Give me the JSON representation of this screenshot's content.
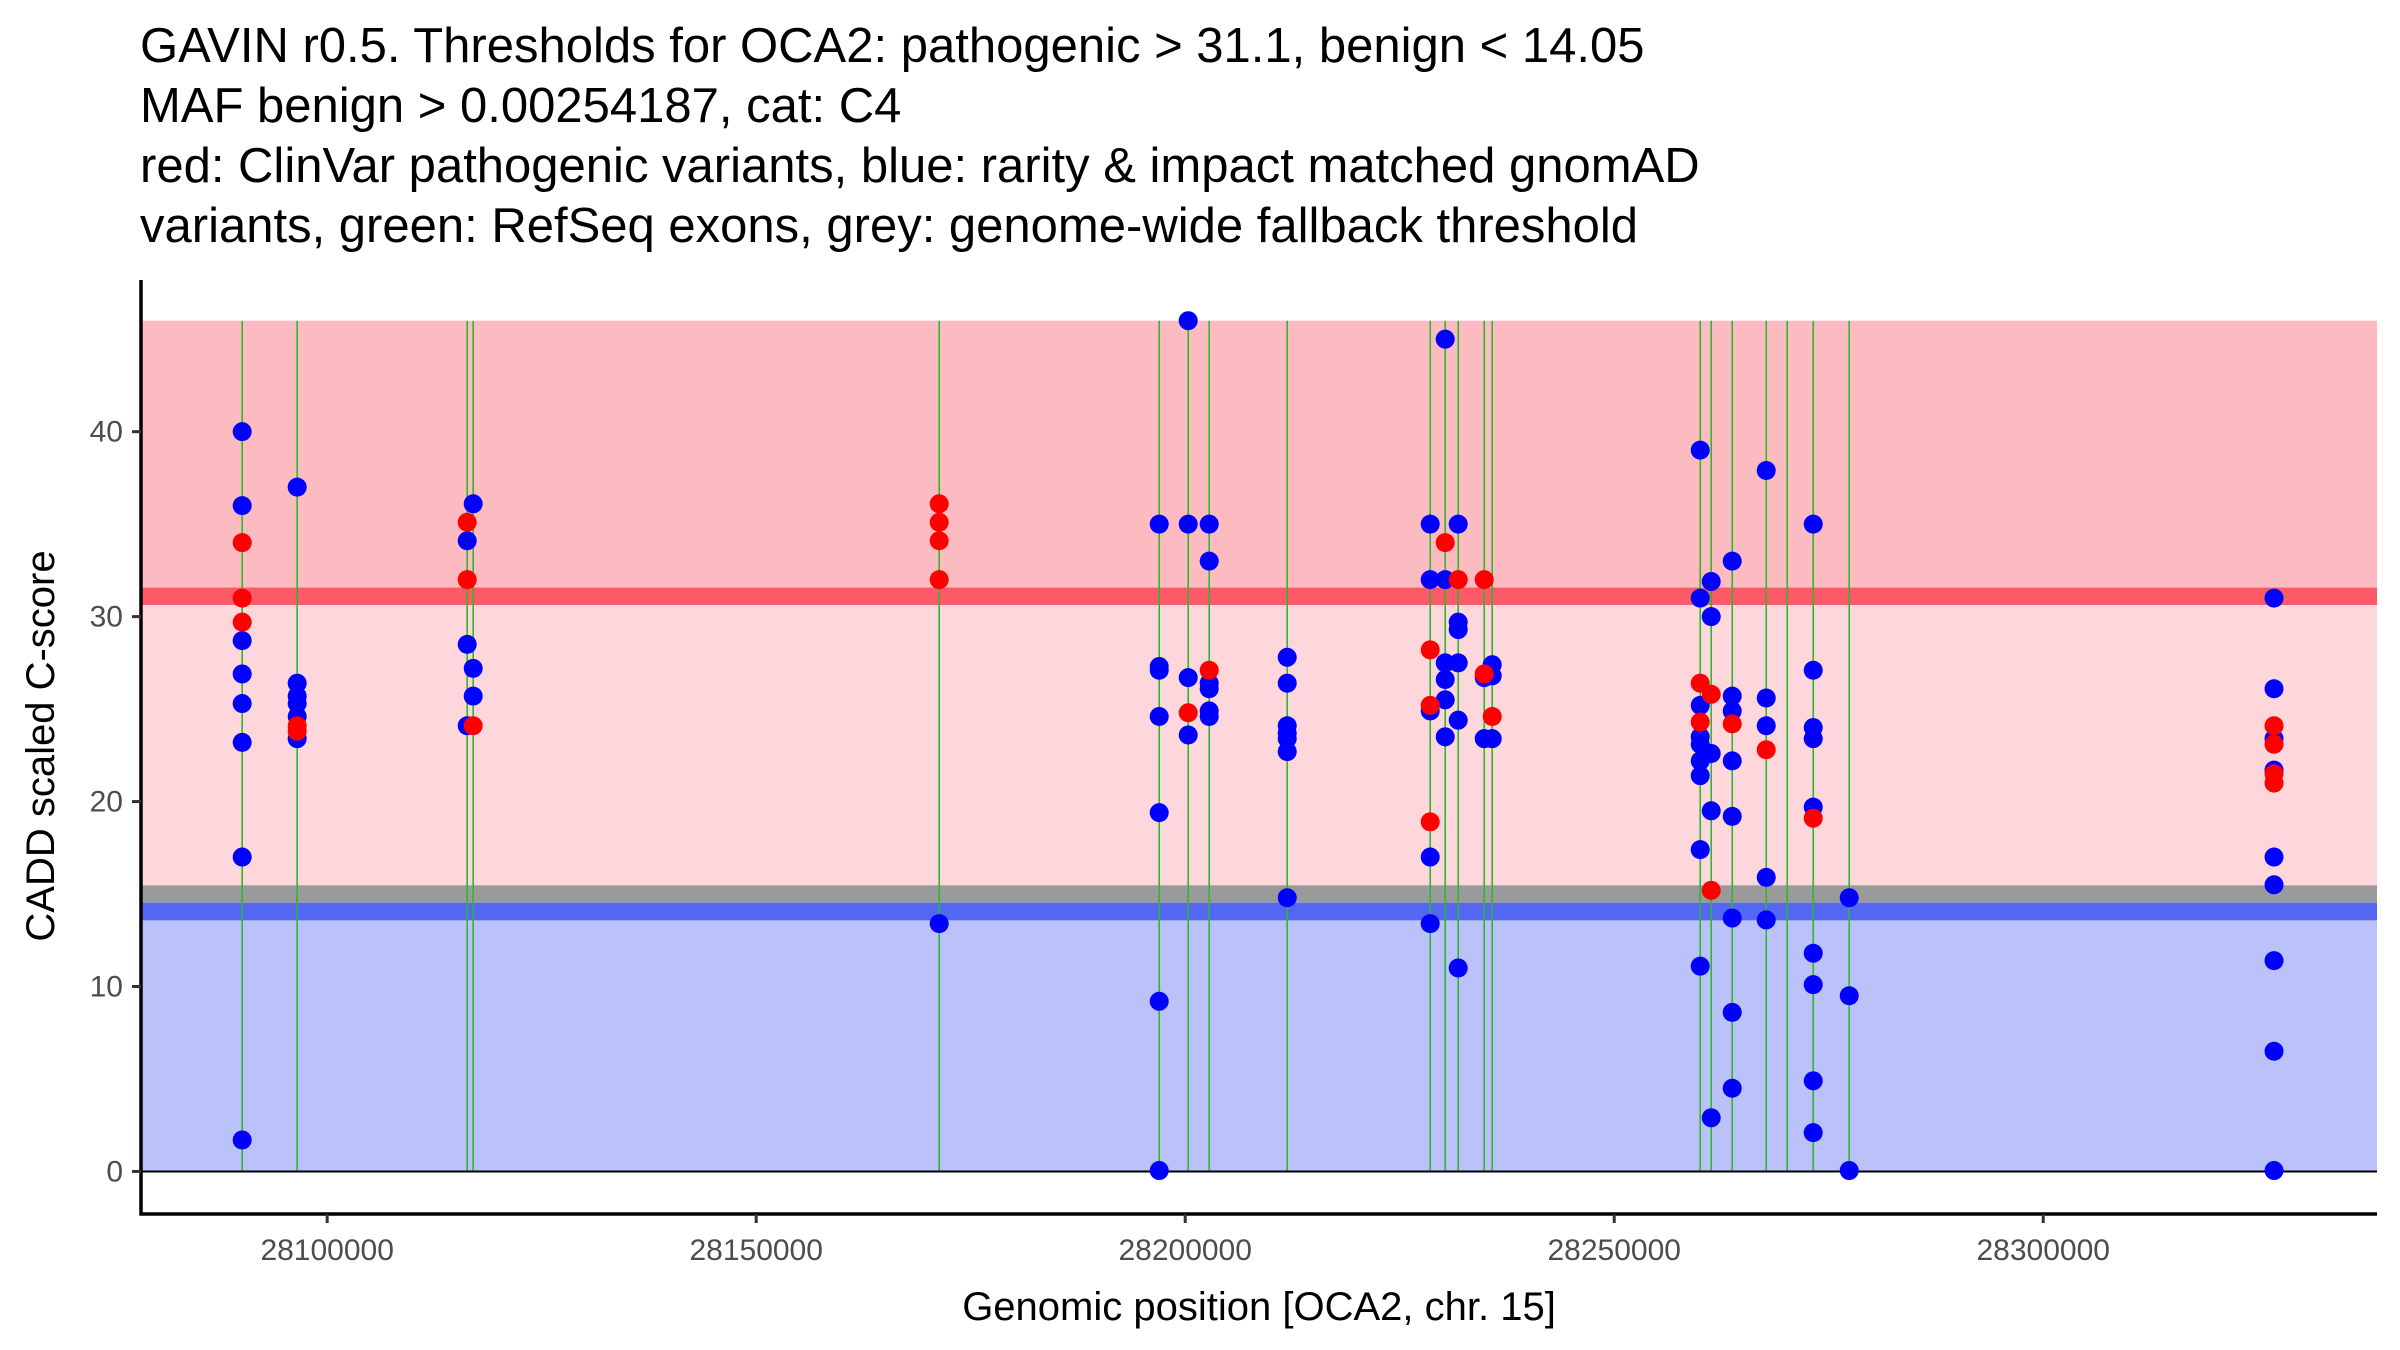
{
  "title_lines": [
    "GAVIN r0.5. Thresholds for OCA2: pathogenic > 31.1, benign < 14.05",
    "MAF benign > 0.00254187, cat: C4",
    "red: ClinVar pathogenic variants, blue: rarity & impact matched gnomAD",
    "variants, green: RefSeq exons, grey: genome-wide fallback threshold"
  ],
  "colors": {
    "pathogenic_region": "#FCBBC0",
    "vus_region": "#FDD7DB",
    "benign_region": "#BBC1F9",
    "pathogenic_threshold": "#FC5A67",
    "fallback_threshold": "#9A9A9A",
    "benign_threshold": "#5467F2",
    "exon": "#2DB82D",
    "clinvar": "#FF0000",
    "gnomad": "#0000FF"
  },
  "chart_data": {
    "type": "scatter",
    "title": "GAVIN r0.5. Thresholds for OCA2: pathogenic > 31.1, benign < 14.05",
    "xlabel": "Genomic position [OCA2, chr. 15]",
    "ylabel": "CADD scaled C-score",
    "xlim": [
      28078300,
      28338900
    ],
    "ylim": [
      -2.3,
      48.2
    ],
    "x_ticks": [
      28100000,
      28150000,
      28200000,
      28250000,
      28300000
    ],
    "x_tick_labels": [
      "28100000",
      "28150000",
      "28200000",
      "28250000",
      "28300000"
    ],
    "y_ticks": [
      0,
      10,
      20,
      30,
      40
    ],
    "y_tick_labels": [
      "0",
      "10",
      "20",
      "30",
      "40"
    ],
    "grid": false,
    "legend": "none (described in title)",
    "regions": {
      "top": 46.0,
      "pathogenic_threshold": 31.1,
      "fallback_threshold": 15.0,
      "benign_threshold": 14.05,
      "bottom": 0
    },
    "exons": [
      28090093,
      28096503,
      28116317,
      28117016,
      28171329,
      28196970,
      28200350,
      28202797,
      28211888,
      28228555,
      28230303,
      28231818,
      28234848,
      28235780,
      28260023,
      28261305,
      28263753,
      28267716,
      28270163,
      28273193,
      28277389
    ],
    "series": [
      {
        "name": "gnomAD (rarity & impact matched)",
        "color": "blue",
        "points": [
          [
            28090093,
            40.0
          ],
          [
            28090093,
            36.0
          ],
          [
            28090093,
            28.7
          ],
          [
            28090093,
            26.9
          ],
          [
            28090093,
            25.3
          ],
          [
            28090093,
            23.2
          ],
          [
            28090093,
            17.0
          ],
          [
            28090093,
            1.7
          ],
          [
            28096503,
            37.0
          ],
          [
            28096503,
            26.4
          ],
          [
            28096503,
            25.7
          ],
          [
            28096503,
            25.3
          ],
          [
            28096503,
            24.6
          ],
          [
            28096503,
            23.4
          ],
          [
            28117016,
            36.1
          ],
          [
            28116317,
            34.1
          ],
          [
            28116317,
            28.5
          ],
          [
            28117016,
            27.2
          ],
          [
            28117016,
            25.7
          ],
          [
            28116317,
            24.1
          ],
          [
            28171329,
            13.4
          ],
          [
            28196970,
            35.0
          ],
          [
            28196970,
            27.3
          ],
          [
            28196970,
            27.1
          ],
          [
            28196970,
            24.6
          ],
          [
            28196970,
            19.4
          ],
          [
            28196970,
            9.2
          ],
          [
            28196970,
            0.05
          ],
          [
            28200350,
            46.0
          ],
          [
            28200350,
            35.0
          ],
          [
            28200350,
            26.7
          ],
          [
            28200350,
            23.6
          ],
          [
            28202797,
            35.0
          ],
          [
            28202797,
            33.0
          ],
          [
            28202797,
            26.4
          ],
          [
            28202797,
            26.1
          ],
          [
            28202797,
            24.9
          ],
          [
            28202797,
            24.6
          ],
          [
            28211888,
            27.8
          ],
          [
            28211888,
            26.4
          ],
          [
            28211888,
            24.1
          ],
          [
            28211888,
            23.7
          ],
          [
            28211888,
            23.4
          ],
          [
            28211888,
            22.7
          ],
          [
            28211888,
            14.8
          ],
          [
            28228555,
            35.0
          ],
          [
            28228555,
            32.0
          ],
          [
            28228555,
            24.9
          ],
          [
            28228555,
            17.0
          ],
          [
            28228555,
            13.4
          ],
          [
            28230303,
            45.0
          ],
          [
            28230303,
            32.0
          ],
          [
            28230303,
            27.5
          ],
          [
            28230303,
            26.6
          ],
          [
            28230303,
            25.5
          ],
          [
            28230303,
            23.5
          ],
          [
            28231818,
            35.0
          ],
          [
            28231818,
            29.7
          ],
          [
            28231818,
            29.3
          ],
          [
            28231818,
            27.5
          ],
          [
            28231818,
            24.4
          ],
          [
            28231818,
            11.0
          ],
          [
            28234848,
            26.7
          ],
          [
            28234848,
            23.4
          ],
          [
            28235780,
            27.4
          ],
          [
            28235780,
            26.8
          ],
          [
            28235780,
            23.4
          ],
          [
            28260023,
            39.0
          ],
          [
            28260023,
            31.0
          ],
          [
            28260023,
            25.2
          ],
          [
            28260023,
            23.5
          ],
          [
            28260023,
            23.1
          ],
          [
            28260023,
            22.2
          ],
          [
            28260023,
            21.4
          ],
          [
            28260023,
            17.4
          ],
          [
            28260023,
            11.1
          ],
          [
            28261305,
            31.9
          ],
          [
            28261305,
            30.0
          ],
          [
            28261305,
            22.6
          ],
          [
            28261305,
            19.5
          ],
          [
            28261305,
            2.9
          ],
          [
            28263753,
            33.0
          ],
          [
            28263753,
            25.7
          ],
          [
            28263753,
            24.9
          ],
          [
            28263753,
            22.2
          ],
          [
            28263753,
            19.2
          ],
          [
            28263753,
            13.7
          ],
          [
            28263753,
            8.6
          ],
          [
            28263753,
            4.5
          ],
          [
            28267716,
            37.9
          ],
          [
            28267716,
            25.6
          ],
          [
            28267716,
            24.1
          ],
          [
            28267716,
            15.9
          ],
          [
            28267716,
            13.6
          ],
          [
            28273193,
            35.0
          ],
          [
            28273193,
            27.1
          ],
          [
            28273193,
            24.0
          ],
          [
            28273193,
            23.4
          ],
          [
            28273193,
            19.7
          ],
          [
            28273193,
            11.8
          ],
          [
            28273193,
            10.1
          ],
          [
            28273193,
            4.9
          ],
          [
            28273193,
            2.1
          ],
          [
            28277389,
            14.8
          ],
          [
            28277389,
            9.5
          ],
          [
            28277389,
            0.05
          ],
          [
            28326900,
            31.0
          ],
          [
            28326900,
            26.1
          ],
          [
            28326900,
            23.4
          ],
          [
            28326900,
            21.7
          ],
          [
            28326900,
            17.0
          ],
          [
            28326900,
            15.5
          ],
          [
            28326900,
            11.4
          ],
          [
            28326900,
            6.5
          ],
          [
            28326900,
            0.05
          ]
        ]
      },
      {
        "name": "ClinVar pathogenic",
        "color": "red",
        "points": [
          [
            28090093,
            34.0
          ],
          [
            28090093,
            31.0
          ],
          [
            28090093,
            29.7
          ],
          [
            28096503,
            24.1
          ],
          [
            28096503,
            23.8
          ],
          [
            28116317,
            35.1
          ],
          [
            28116317,
            32.0
          ],
          [
            28117016,
            24.1
          ],
          [
            28171329,
            36.1
          ],
          [
            28171329,
            35.1
          ],
          [
            28171329,
            34.1
          ],
          [
            28171329,
            32.0
          ],
          [
            28200350,
            24.8
          ],
          [
            28202797,
            27.1
          ],
          [
            28228555,
            28.2
          ],
          [
            28228555,
            25.2
          ],
          [
            28228555,
            18.9
          ],
          [
            28230303,
            34.0
          ],
          [
            28231818,
            32.0
          ],
          [
            28234848,
            32.0
          ],
          [
            28234848,
            26.9
          ],
          [
            28235780,
            24.6
          ],
          [
            28260023,
            26.4
          ],
          [
            28260023,
            24.3
          ],
          [
            28261305,
            25.8
          ],
          [
            28261305,
            15.2
          ],
          [
            28263753,
            24.2
          ],
          [
            28267716,
            22.8
          ],
          [
            28273193,
            19.1
          ],
          [
            28326900,
            24.1
          ],
          [
            28326900,
            23.1
          ],
          [
            28326900,
            21.5
          ],
          [
            28326900,
            21.0
          ]
        ]
      }
    ]
  }
}
